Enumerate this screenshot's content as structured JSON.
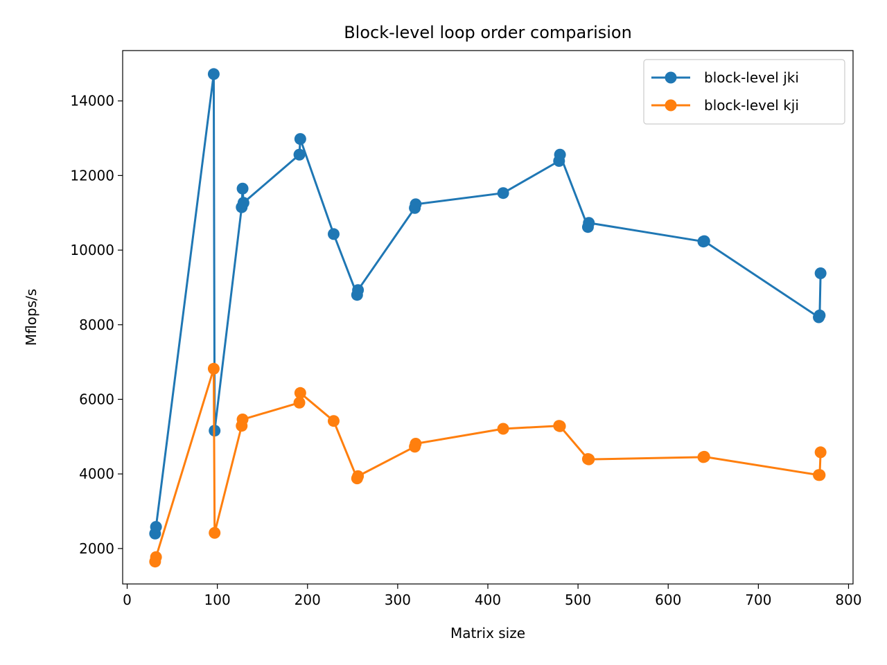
{
  "chart_data": {
    "type": "line",
    "title": "Block-level loop order comparision",
    "xlabel": "Matrix size",
    "ylabel": "Mflops/s",
    "xlim": [
      -5,
      805
    ],
    "ylim": [
      1050,
      15350
    ],
    "xticks": [
      0,
      100,
      200,
      300,
      400,
      500,
      600,
      700,
      800
    ],
    "yticks": [
      2000,
      4000,
      6000,
      8000,
      10000,
      12000,
      14000
    ],
    "grid": false,
    "legend_position": "top-right",
    "series": [
      {
        "name": "block-level jki",
        "color": "#1f77b4",
        "x": [
          31,
          32,
          96,
          97,
          127,
          128,
          129,
          191,
          192,
          229,
          255,
          256,
          319,
          320,
          417,
          479,
          480,
          511,
          512,
          639,
          640,
          767,
          768,
          769
        ],
        "y": [
          2400,
          2580,
          14720,
          5160,
          11150,
          11650,
          11270,
          12560,
          12980,
          10430,
          8800,
          8930,
          11130,
          11230,
          11530,
          12390,
          12560,
          10620,
          10730,
          10230,
          10240,
          8200,
          8250,
          9380
        ]
      },
      {
        "name": "block-level kji",
        "color": "#ff7f0e",
        "x": [
          31,
          32,
          96,
          97,
          127,
          128,
          191,
          192,
          229,
          255,
          256,
          319,
          320,
          417,
          479,
          480,
          511,
          512,
          639,
          640,
          767,
          768,
          769
        ],
        "y": [
          1650,
          1770,
          6820,
          2420,
          5290,
          5460,
          5910,
          6170,
          5420,
          3880,
          3940,
          4730,
          4810,
          5210,
          5290,
          5280,
          4400,
          4390,
          4450,
          4460,
          3970,
          3970,
          4580
        ]
      }
    ]
  }
}
